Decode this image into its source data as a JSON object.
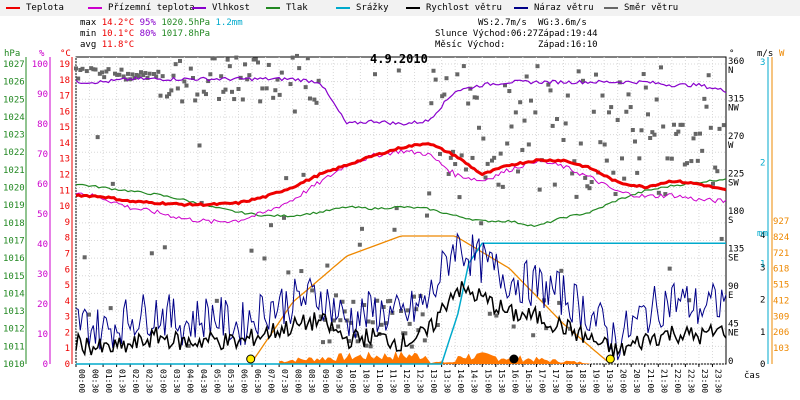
{
  "legend": [
    {
      "label": "Teplota",
      "color": "#ee0000"
    },
    {
      "label": "Přízemní teplota",
      "color": "#cc00cc"
    },
    {
      "label": "Vlhkost",
      "color": "#8800cc"
    },
    {
      "label": "Tlak",
      "color": "#228822"
    },
    {
      "label": "Srážky",
      "color": "#00aacc"
    },
    {
      "label": "Rychlost větru",
      "color": "#000000"
    },
    {
      "label": "Náraz větru",
      "color": "#000088"
    },
    {
      "label": "Směr větru",
      "color": "#666666"
    }
  ],
  "stats": {
    "max_label": "max",
    "max_temp": "14.2°C",
    "max_hum": "95%",
    "max_press": "1020.5hPa",
    "max_rain": "1.2mm",
    "min_label": "min",
    "min_temp": "10.1°C",
    "min_hum": "80%",
    "min_press": "1017.8hPa",
    "avg_label": "avg",
    "avg_temp": "11.8°C"
  },
  "sun": {
    "ws": "WS:2.7m/s",
    "wg": "WG:3.6m/s",
    "sunrise": "Slunce Východ:06:27",
    "sunset": "Západ:19:44",
    "moonrise": "Měsíc  Východ:",
    "moonset": "Západ:16:10"
  },
  "colors": {
    "temp": "#ee0000",
    "ground": "#cc00cc",
    "humidity": "#8800cc",
    "pressure": "#228822",
    "rain": "#00aacc",
    "wind": "#000000",
    "gust": "#000088",
    "dir": "#666666",
    "sunarc": "#ee8800",
    "rainfill": "#ff7700"
  },
  "chart_data": {
    "type": "line",
    "title": "4.9.2010",
    "xlabel": "čas",
    "x_ticks": [
      "00:00",
      "00:30",
      "01:00",
      "01:30",
      "02:00",
      "02:30",
      "03:00",
      "03:30",
      "04:00",
      "04:30",
      "05:00",
      "05:30",
      "06:00",
      "06:30",
      "07:00",
      "07:30",
      "08:00",
      "08:30",
      "09:00",
      "09:30",
      "10:00",
      "10:30",
      "11:00",
      "11:30",
      "12:00",
      "12:30",
      "13:00",
      "13:30",
      "14:00",
      "14:30",
      "15:00",
      "15:30",
      "16:00",
      "16:30",
      "17:00",
      "17:30",
      "18:00",
      "18:30",
      "19:00",
      "19:30",
      "20:00",
      "20:30",
      "21:00",
      "21:30",
      "22:00",
      "22:30",
      "23:00",
      "23:30"
    ],
    "axes": {
      "hpa": {
        "label": "hPa",
        "ticks": [
          "1027",
          "1026",
          "1025",
          "1024",
          "1023",
          "1022",
          "1021",
          "1020",
          "1019",
          "1018",
          "1017",
          "1016",
          "1015",
          "1014",
          "1013",
          "1012",
          "1011",
          "1010"
        ],
        "range": [
          1010,
          1027
        ]
      },
      "percent": {
        "label": "%",
        "ticks": [
          "100",
          "90",
          "80",
          "70",
          "60",
          "50",
          "40",
          "30",
          "20",
          "10",
          "0"
        ],
        "range": [
          0,
          100
        ]
      },
      "celsius": {
        "label": "°C",
        "ticks": [
          "19",
          "18",
          "17",
          "16",
          "15",
          "14",
          "13",
          "12",
          "11",
          "10",
          "9",
          "8",
          "7",
          "6",
          "5",
          "4",
          "3",
          "2",
          "1",
          "0"
        ],
        "range": [
          0,
          19
        ]
      },
      "direction": {
        "label": "°",
        "ticks": [
          {
            "v": "360",
            "d": "N"
          },
          {
            "v": "315",
            "d": "NW"
          },
          {
            "v": "270",
            "d": "W"
          },
          {
            "v": "225",
            "d": "SW"
          },
          {
            "v": "180",
            "d": "S"
          },
          {
            "v": "135",
            "d": "SE"
          },
          {
            "v": "90",
            "d": "E"
          },
          {
            "v": "45",
            "d": "NE"
          },
          {
            "v": "0",
            "d": ""
          }
        ]
      },
      "wind": {
        "label": "m/s",
        "ticks": [
          "4",
          "3",
          "2",
          "1",
          "0"
        ],
        "range": [
          0,
          4
        ]
      },
      "rain_mm": {
        "label": "mm",
        "ticks": [
          "3",
          "2",
          "1"
        ],
        "range": [
          0,
          3
        ]
      },
      "radiation": {
        "label": "W",
        "ticks": [
          "927",
          "824",
          "721",
          "618",
          "515",
          "412",
          "309",
          "206",
          "103"
        ],
        "range": [
          0,
          927
        ]
      }
    },
    "series": [
      {
        "name": "Teplota",
        "axis": "celsius",
        "x": [
          0,
          1,
          2,
          3,
          4,
          5,
          6,
          7,
          8,
          9,
          10,
          11,
          12,
          13,
          14,
          15,
          16,
          17,
          18,
          19,
          20,
          21,
          22,
          23,
          24
        ],
        "values": [
          10.7,
          10.6,
          10.3,
          10.2,
          10.1,
          10.1,
          10.2,
          10.6,
          11.2,
          12.0,
          12.6,
          13.2,
          13.7,
          14.0,
          13.2,
          12.0,
          12.6,
          12.9,
          12.9,
          12.4,
          11.5,
          11.2,
          11.6,
          11.4,
          11.0
        ]
      },
      {
        "name": "Přízemní teplota",
        "axis": "celsius",
        "x": [
          0,
          1,
          2,
          3,
          4,
          5,
          6,
          7,
          8,
          9,
          10,
          11,
          12,
          13,
          14,
          15,
          16,
          17,
          18,
          19,
          20,
          21,
          22,
          23,
          24
        ],
        "values": [
          10.9,
          10.5,
          9.9,
          9.6,
          9.2,
          9.0,
          9.1,
          9.6,
          10.4,
          11.5,
          12.6,
          13.2,
          13.5,
          13.3,
          12.0,
          11.6,
          12.3,
          12.9,
          12.5,
          11.8,
          10.9,
          10.6,
          10.7,
          10.4,
          10.3
        ]
      },
      {
        "name": "Vlhkost",
        "axis": "percent",
        "x": [
          0,
          1,
          2,
          3,
          4,
          5,
          6,
          7,
          8,
          9,
          10,
          11,
          12,
          13,
          14,
          15,
          16,
          17,
          18,
          19,
          20,
          21,
          22,
          23,
          24
        ],
        "values": [
          94,
          94,
          95,
          95,
          95,
          95,
          95,
          95,
          95,
          94,
          80,
          81,
          80,
          81,
          91,
          93,
          94,
          94,
          94,
          94,
          94,
          94,
          93,
          93,
          91
        ]
      },
      {
        "name": "Tlak",
        "axis": "hpa",
        "x": [
          0,
          1,
          2,
          3,
          4,
          5,
          6,
          7,
          8,
          9,
          10,
          11,
          12,
          13,
          14,
          15,
          16,
          17,
          18,
          19,
          20,
          21,
          22,
          23,
          24
        ],
        "values": [
          1020.2,
          1020.0,
          1019.8,
          1019.6,
          1019.3,
          1018.9,
          1018.6,
          1018.4,
          1018.4,
          1018.6,
          1018.9,
          1018.8,
          1018.9,
          1018.8,
          1018.4,
          1018.1,
          1018.1,
          1017.8,
          1018.3,
          1018.6,
          1019.3,
          1019.8,
          1020.1,
          1020.3,
          1020.5
        ]
      },
      {
        "name": "Srážky",
        "axis": "rain_mm",
        "x": [
          0,
          13.5,
          14.1,
          14.5,
          15.0,
          24
        ],
        "values": [
          0,
          0,
          0.5,
          1.0,
          1.2,
          1.2
        ]
      },
      {
        "name": "Rychlost větru",
        "axis": "wind",
        "x": [
          0,
          1,
          2,
          3,
          4,
          5,
          6,
          7,
          8,
          9,
          10,
          11,
          12,
          13,
          14,
          15,
          16,
          17,
          18,
          19,
          20,
          21,
          22,
          23,
          24
        ],
        "values": [
          0.6,
          0.4,
          0.5,
          0.8,
          0.6,
          0.7,
          0.6,
          0.9,
          1.1,
          1.3,
          0.7,
          0.8,
          0.6,
          0.9,
          2.3,
          2.0,
          1.5,
          1.4,
          1.1,
          0.7,
          0.3,
          0.7,
          0.9,
          0.8,
          1.0
        ]
      },
      {
        "name": "Náraz větru",
        "axis": "wind",
        "x": [
          0,
          1,
          2,
          3,
          4,
          5,
          6,
          7,
          8,
          9,
          10,
          11,
          12,
          13,
          14,
          15,
          16,
          17,
          18,
          19,
          20,
          21,
          22,
          23,
          24
        ],
        "values": [
          1.2,
          0.9,
          1.3,
          1.5,
          1.1,
          1.4,
          1.0,
          1.6,
          1.8,
          2.0,
          1.2,
          1.5,
          1.3,
          1.8,
          3.6,
          3.0,
          2.5,
          2.3,
          2.0,
          1.4,
          0.6,
          1.4,
          1.9,
          1.6,
          1.8
        ]
      }
    ],
    "solar_radiation": {
      "name": "sun",
      "axis": "radiation",
      "x": [
        6.45,
        8,
        10,
        12,
        14,
        16,
        18,
        19.73
      ],
      "values": [
        0,
        400,
        700,
        830,
        830,
        620,
        260,
        0
      ]
    }
  }
}
